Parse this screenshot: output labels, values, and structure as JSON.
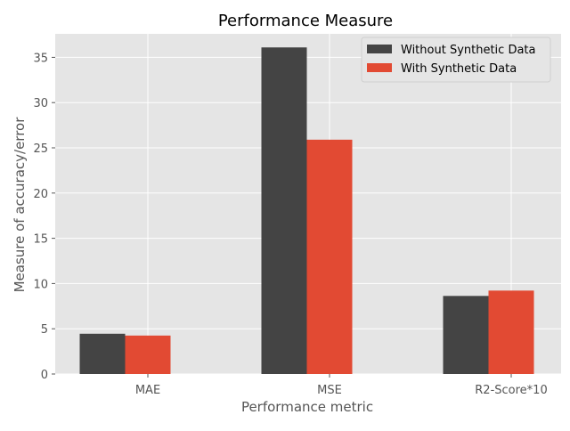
{
  "chart_data": {
    "type": "bar",
    "title": "Performance Measure",
    "xlabel": "Performance metric",
    "ylabel": "Measure of accuracy/error",
    "categories": [
      "MAE",
      "MSE",
      "R2-Score*10"
    ],
    "series": [
      {
        "name": "Without Synthetic Data",
        "color": "#444444",
        "values": [
          4.45,
          36.1,
          8.63
        ]
      },
      {
        "name": "With Synthetic Data",
        "color": "#E24A33",
        "values": [
          4.25,
          25.9,
          9.22
        ]
      }
    ],
    "ylim": [
      0,
      37.6
    ],
    "yticks": [
      "0",
      "5",
      "10",
      "15",
      "20",
      "25",
      "30",
      "35"
    ],
    "grid": true,
    "legend_position": "top-right",
    "background": "#E5E5E5"
  }
}
